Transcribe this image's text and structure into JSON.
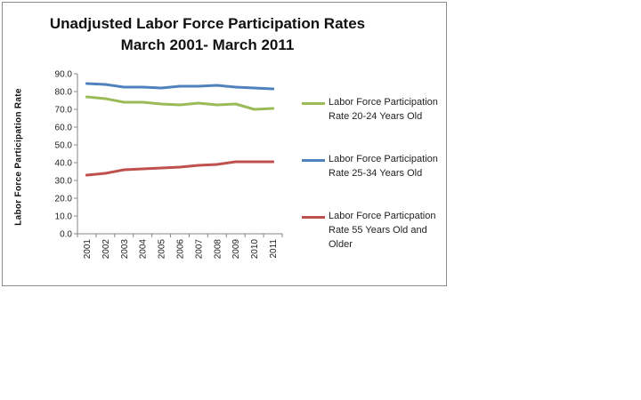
{
  "chart_data": {
    "type": "line",
    "title": [
      "Unadjusted Labor Force Participation Rates",
      "March 2001- March 2011"
    ],
    "ylabel": "Labor Force  Participation  Rate",
    "ylim": [
      0,
      90
    ],
    "yticks": [
      "0.0",
      "10.0",
      "20.0",
      "30.0",
      "40.0",
      "50.0",
      "60.0",
      "70.0",
      "80.0",
      "90.0"
    ],
    "categories": [
      "2001",
      "2002",
      "2003",
      "2004",
      "2005",
      "2006",
      "2007",
      "2008",
      "2009",
      "2010",
      "2011"
    ],
    "legend_position": "right",
    "series": [
      {
        "name": "Labor Force Participation Rate  20-24 Years Old",
        "color": "#9bbb59",
        "values": [
          77.0,
          76.0,
          74.0,
          74.0,
          73.0,
          72.5,
          73.5,
          72.5,
          73.0,
          70.0,
          70.5
        ]
      },
      {
        "name": "Labor Force Participation Rate  25-34 Years Old",
        "color": "#4f81bd",
        "values": [
          84.5,
          84.0,
          82.5,
          82.5,
          82.0,
          83.0,
          83.0,
          83.5,
          82.5,
          82.0,
          81.5
        ]
      },
      {
        "name": "Labor Force Particpation Rate 55 Years Old and  Older",
        "color": "#c0504d",
        "values": [
          33.0,
          34.0,
          36.0,
          36.5,
          37.0,
          37.5,
          38.5,
          39.0,
          40.5,
          40.5,
          40.5
        ]
      }
    ]
  }
}
